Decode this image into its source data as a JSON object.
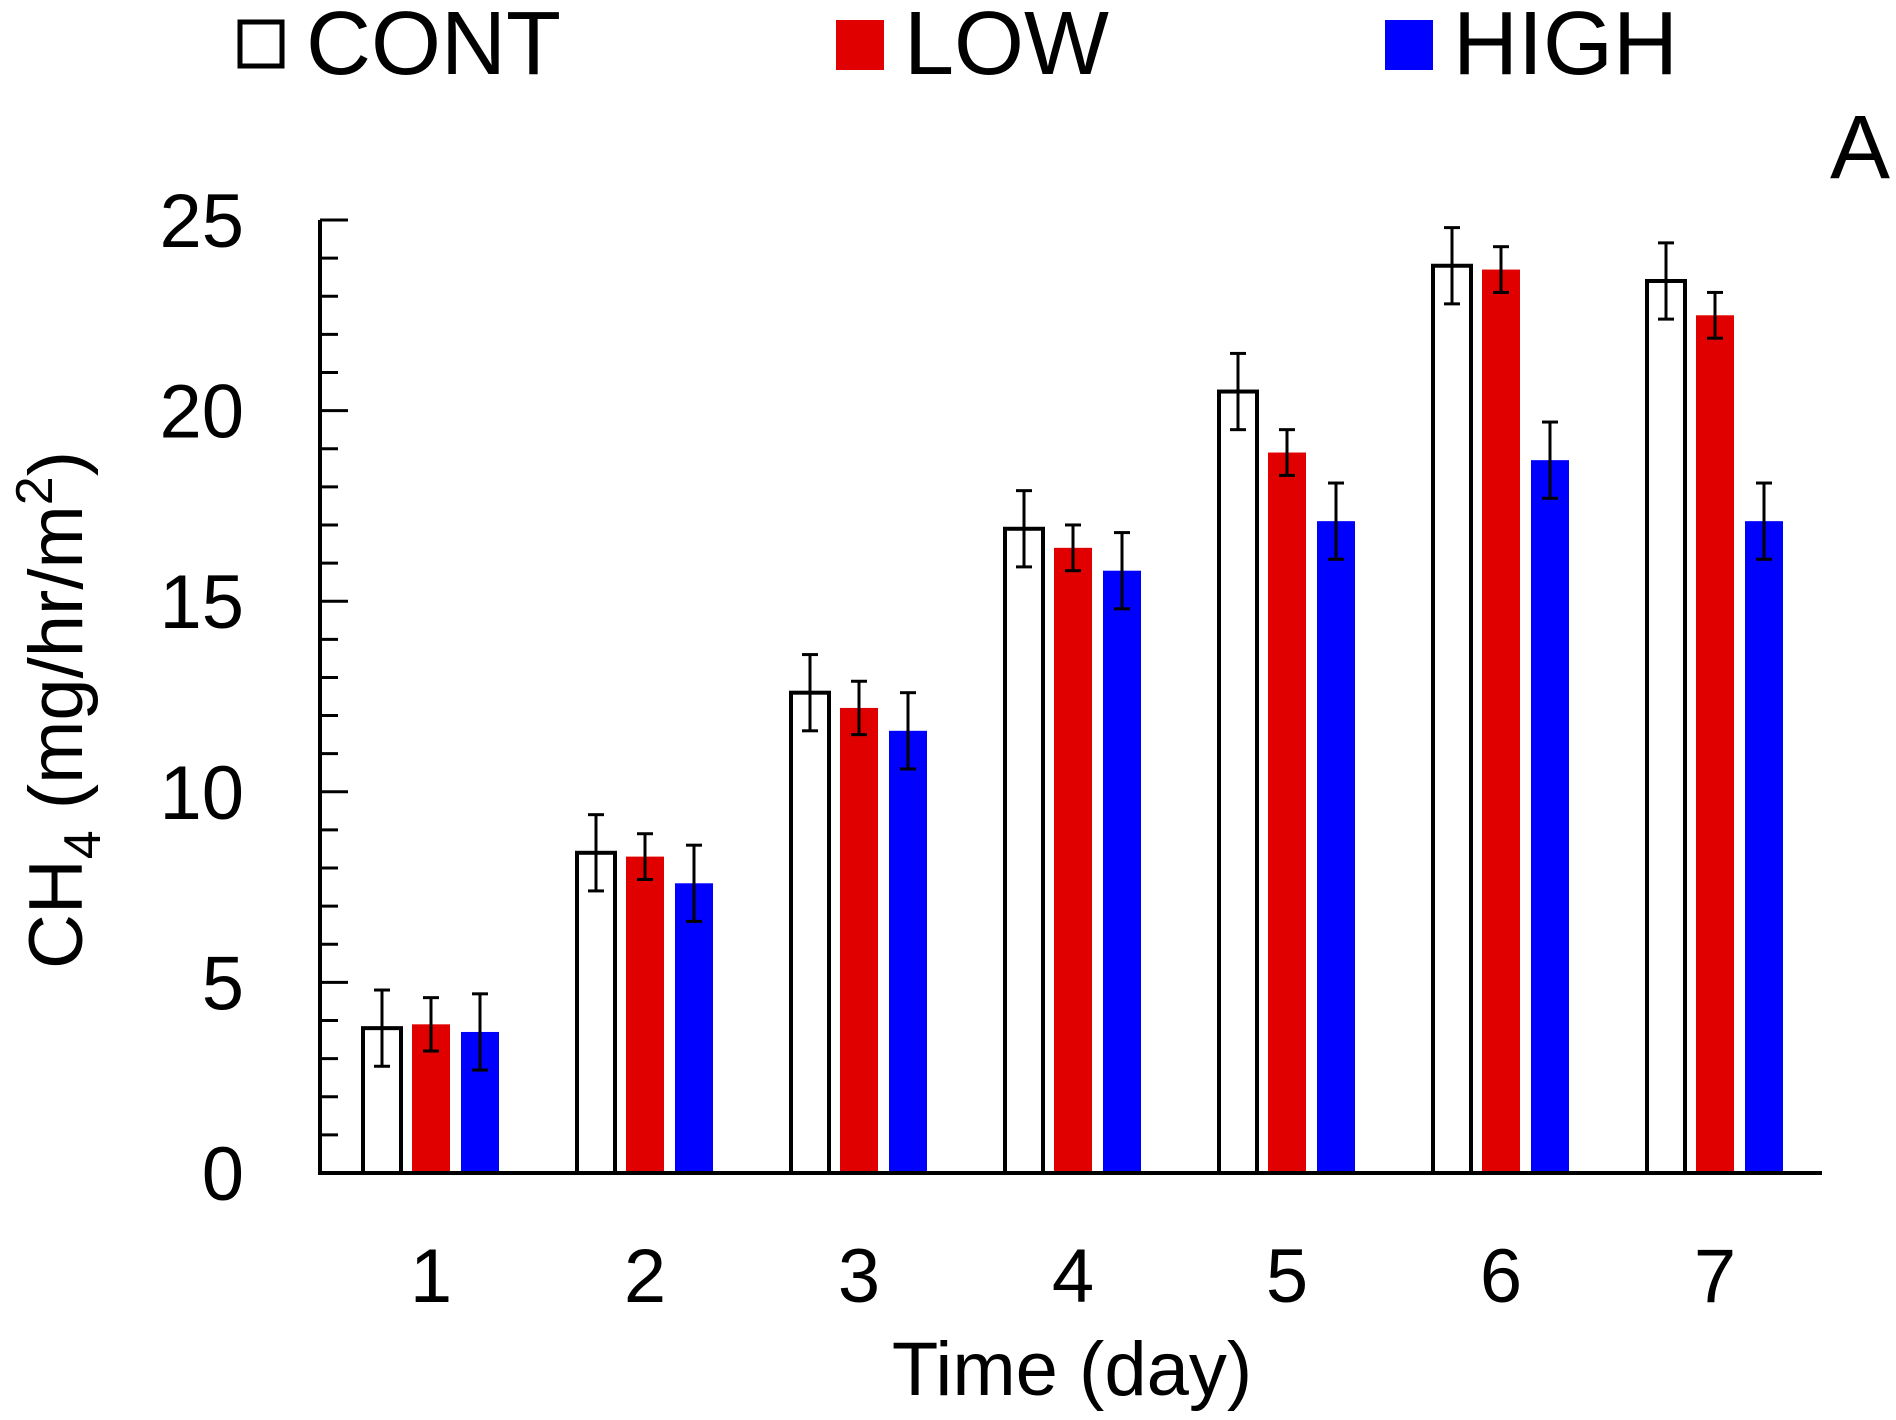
{
  "chart_data": {
    "type": "bar",
    "panel_label": "A",
    "title": "",
    "xlabel": "Time (day)",
    "ylabel": {
      "main": "CH",
      "subscript": "4",
      "unit_prefix": " (mg/hr/m",
      "superscript": "2",
      "unit_suffix": ")"
    },
    "categories": [
      "1",
      "2",
      "3",
      "4",
      "5",
      "6",
      "7"
    ],
    "ylim": [
      0,
      25
    ],
    "yticks": [
      "0",
      "5",
      "10",
      "15",
      "20",
      "25"
    ],
    "legend_position": "top",
    "series": [
      {
        "name": "CONT",
        "fill": "#ffffff",
        "stroke": "#000000",
        "values": [
          3.8,
          8.4,
          12.6,
          16.9,
          20.5,
          23.8,
          23.4
        ],
        "errors": [
          1.0,
          1.0,
          1.0,
          1.0,
          1.0,
          1.0,
          1.0
        ]
      },
      {
        "name": "LOW",
        "fill": "#e00000",
        "stroke": "#e00000",
        "values": [
          3.9,
          8.3,
          12.2,
          16.4,
          18.9,
          23.7,
          22.5
        ],
        "errors": [
          0.7,
          0.6,
          0.7,
          0.6,
          0.6,
          0.6,
          0.6
        ]
      },
      {
        "name": "HIGH",
        "fill": "#0000ff",
        "stroke": "#0000ff",
        "values": [
          3.7,
          7.6,
          11.6,
          15.8,
          17.1,
          18.7,
          17.1
        ],
        "errors": [
          1.0,
          1.0,
          1.0,
          1.0,
          1.0,
          1.0,
          1.0
        ]
      }
    ]
  }
}
